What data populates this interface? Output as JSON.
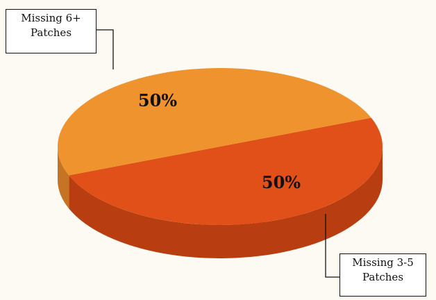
{
  "chart_data": {
    "type": "pie",
    "title": "",
    "three_d": true,
    "slices": [
      {
        "label_line1": "Missing 6+",
        "label_line2": "Patches",
        "value": 50,
        "value_label": "50%",
        "color": "#e05018",
        "side_color": "#b83d10"
      },
      {
        "label_line1": "Missing 3-5",
        "label_line2": "Patches",
        "value": 50,
        "value_label": "50%",
        "color": "#ef932e",
        "side_color": "#c47422"
      }
    ]
  }
}
